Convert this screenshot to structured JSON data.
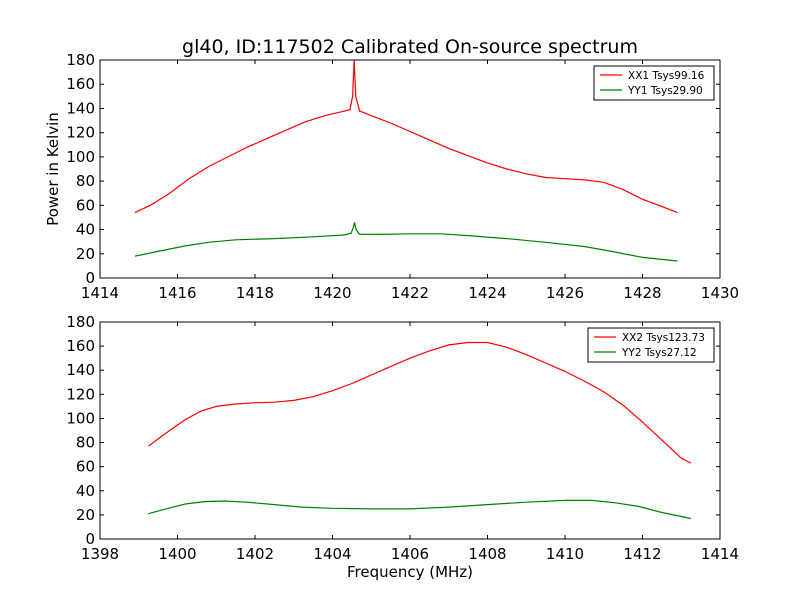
{
  "title": "gl40, ID:117502 Calibrated On-source spectrum",
  "colors": {
    "xx": "#ff0000",
    "yy": "#008000"
  },
  "chart_data": [
    {
      "type": "line",
      "xlabel": "",
      "ylabel": "Power in Kelvin",
      "xlim": [
        1414,
        1430
      ],
      "ylim": [
        0,
        180
      ],
      "xticks": [
        1414,
        1416,
        1418,
        1420,
        1422,
        1424,
        1426,
        1428,
        1430
      ],
      "yticks": [
        0,
        20,
        40,
        60,
        80,
        100,
        120,
        140,
        160,
        180
      ],
      "legend_position": "top-right",
      "series": [
        {
          "name": "XX1 Tsys99.16",
          "color": "#ff0000",
          "points": [
            [
              1414.9,
              54
            ],
            [
              1415.3,
              60
            ],
            [
              1415.8,
              70
            ],
            [
              1416.3,
              82
            ],
            [
              1416.8,
              92
            ],
            [
              1417.3,
              100
            ],
            [
              1417.8,
              108
            ],
            [
              1418.3,
              115
            ],
            [
              1418.8,
              122
            ],
            [
              1419.3,
              129
            ],
            [
              1419.8,
              134
            ],
            [
              1420.2,
              137
            ],
            [
              1420.45,
              139
            ],
            [
              1420.52,
              150
            ],
            [
              1420.56,
              180
            ],
            [
              1420.6,
              150
            ],
            [
              1420.7,
              138
            ],
            [
              1421.0,
              134
            ],
            [
              1421.5,
              128
            ],
            [
              1422.0,
              121
            ],
            [
              1422.5,
              114
            ],
            [
              1423.0,
              107
            ],
            [
              1423.5,
              101
            ],
            [
              1424.0,
              95
            ],
            [
              1424.5,
              90
            ],
            [
              1425.0,
              86
            ],
            [
              1425.5,
              83
            ],
            [
              1426.0,
              82
            ],
            [
              1426.5,
              81
            ],
            [
              1427.0,
              79
            ],
            [
              1427.5,
              73
            ],
            [
              1428.0,
              65
            ],
            [
              1428.5,
              59
            ],
            [
              1428.9,
              54
            ]
          ]
        },
        {
          "name": "YY1 Tsys29.90",
          "color": "#008000",
          "points": [
            [
              1414.9,
              18
            ],
            [
              1415.5,
              22
            ],
            [
              1416.2,
              26.5
            ],
            [
              1416.8,
              29.5
            ],
            [
              1417.5,
              31.5
            ],
            [
              1418.5,
              32.5
            ],
            [
              1419.5,
              34
            ],
            [
              1420.3,
              35.5
            ],
            [
              1420.48,
              37
            ],
            [
              1420.54,
              42
            ],
            [
              1420.57,
              46
            ],
            [
              1420.61,
              40
            ],
            [
              1420.7,
              36
            ],
            [
              1421.2,
              36
            ],
            [
              1422.0,
              36.5
            ],
            [
              1422.8,
              36.5
            ],
            [
              1423.5,
              35
            ],
            [
              1424.5,
              32.5
            ],
            [
              1425.5,
              29.5
            ],
            [
              1426.5,
              26
            ],
            [
              1427.2,
              22
            ],
            [
              1428.0,
              17
            ],
            [
              1428.9,
              14
            ]
          ]
        }
      ]
    },
    {
      "type": "line",
      "xlabel": "Frequency (MHz)",
      "ylabel": "",
      "xlim": [
        1398,
        1414
      ],
      "ylim": [
        0,
        180
      ],
      "xticks": [
        1398,
        1400,
        1402,
        1404,
        1406,
        1408,
        1410,
        1412,
        1414
      ],
      "yticks": [
        0,
        20,
        40,
        60,
        80,
        100,
        120,
        140,
        160,
        180
      ],
      "legend_position": "top-right",
      "series": [
        {
          "name": "XX2 Tsys123.73",
          "color": "#ff0000",
          "points": [
            [
              1399.25,
              77
            ],
            [
              1399.5,
              83
            ],
            [
              1399.8,
              90
            ],
            [
              1400.2,
              99
            ],
            [
              1400.6,
              106
            ],
            [
              1401.0,
              110
            ],
            [
              1401.5,
              112
            ],
            [
              1402.0,
              113
            ],
            [
              1402.5,
              113.5
            ],
            [
              1403.0,
              115
            ],
            [
              1403.5,
              118
            ],
            [
              1404.0,
              123
            ],
            [
              1404.5,
              129
            ],
            [
              1405.0,
              136
            ],
            [
              1405.5,
              143
            ],
            [
              1406.0,
              150
            ],
            [
              1406.5,
              156
            ],
            [
              1407.0,
              161
            ],
            [
              1407.5,
              163
            ],
            [
              1408.0,
              163
            ],
            [
              1408.5,
              159
            ],
            [
              1409.0,
              153
            ],
            [
              1409.5,
              146
            ],
            [
              1410.0,
              139
            ],
            [
              1410.5,
              131
            ],
            [
              1411.0,
              122
            ],
            [
              1411.5,
              111
            ],
            [
              1412.0,
              97
            ],
            [
              1412.5,
              82
            ],
            [
              1413.0,
              67
            ],
            [
              1413.25,
              63
            ]
          ]
        },
        {
          "name": "YY2 Tsys27.12",
          "color": "#008000",
          "points": [
            [
              1399.25,
              21
            ],
            [
              1399.7,
              25
            ],
            [
              1400.2,
              29
            ],
            [
              1400.7,
              31
            ],
            [
              1401.2,
              31.5
            ],
            [
              1401.8,
              30.5
            ],
            [
              1402.5,
              28.5
            ],
            [
              1403.2,
              26.5
            ],
            [
              1404.0,
              25.5
            ],
            [
              1405.0,
              25
            ],
            [
              1406.0,
              25
            ],
            [
              1407.0,
              26.5
            ],
            [
              1408.0,
              28.5
            ],
            [
              1409.0,
              30.5
            ],
            [
              1410.0,
              32
            ],
            [
              1410.7,
              32
            ],
            [
              1411.3,
              30
            ],
            [
              1411.9,
              27
            ],
            [
              1412.5,
              22
            ],
            [
              1413.25,
              17
            ]
          ]
        }
      ]
    }
  ]
}
